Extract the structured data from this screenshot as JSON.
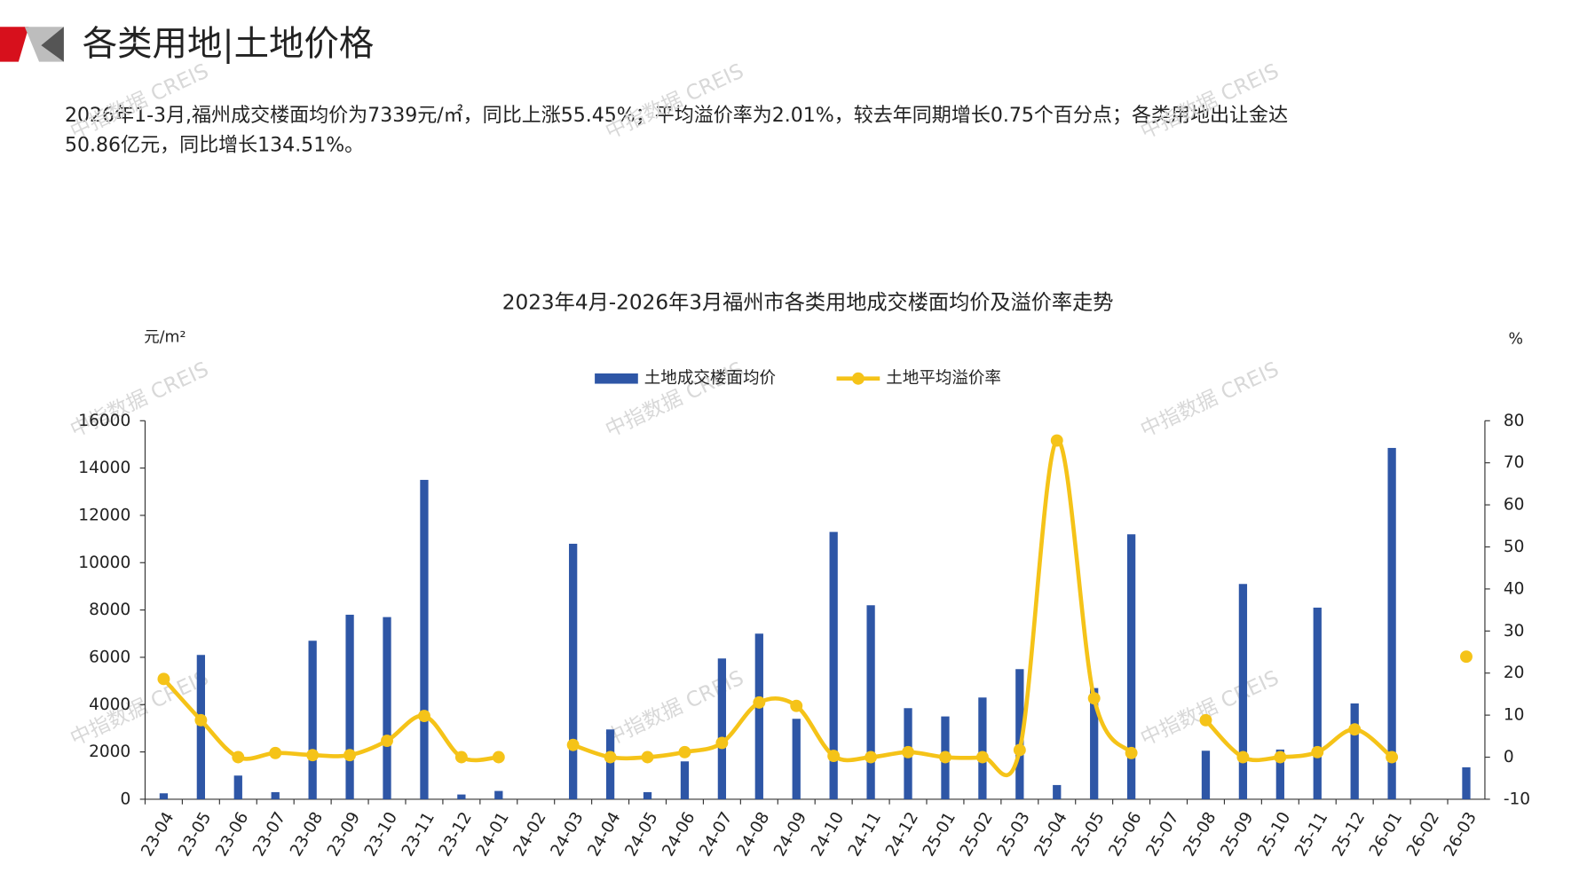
{
  "header": {
    "title": "各类用地|土地价格",
    "paragraph_lines": [
      "2026年1-3月,福州成交楼面均价为7339元/㎡，同比上涨55.45%；平均溢价率为2.01%，较去年同期增长0.75个百分点；各类用地出让金达",
      "50.86亿元，同比增长134.51%。"
    ]
  },
  "watermark": "中指数据 CREIS",
  "chart_data": {
    "type": "bar_line",
    "title": "2023年4月-2026年3月福州市各类用地成交楼面均价及溢价率走势",
    "y_unit": "元/m²",
    "y2_unit": "%",
    "categories": [
      "23-04",
      "23-05",
      "23-06",
      "23-07",
      "23-08",
      "23-09",
      "23-10",
      "23-11",
      "23-12",
      "24-01",
      "24-02",
      "24-03",
      "24-04",
      "24-05",
      "24-06",
      "24-07",
      "24-08",
      "24-09",
      "24-10",
      "24-11",
      "24-12",
      "25-01",
      "25-02",
      "25-03",
      "25-04",
      "25-05",
      "25-06",
      "25-07",
      "25-08",
      "25-09",
      "25-10",
      "25-11",
      "25-12",
      "26-01",
      "26-02",
      "26-03"
    ],
    "series": [
      {
        "name": "土地成交楼面均价",
        "color": "#2e56a6",
        "type": "bar",
        "values": [
          250,
          6100,
          1000,
          300,
          6700,
          7800,
          7700,
          13500,
          200,
          350,
          null,
          10800,
          2950,
          300,
          1600,
          5950,
          7000,
          3400,
          11300,
          8200,
          3850,
          3500,
          4300,
          5500,
          600,
          4700,
          11200,
          null,
          2050,
          9100,
          2100,
          8100,
          4050,
          14850,
          null,
          1350
        ]
      },
      {
        "name": "土地平均溢价率",
        "color": "#f5c318",
        "type": "line",
        "axis": "y2",
        "values": [
          18.6,
          8.8,
          0,
          1,
          0.5,
          0.5,
          3.9,
          9.8,
          0,
          0,
          null,
          2.9,
          0,
          0,
          1.2,
          3.4,
          13,
          12.2,
          0.3,
          0,
          1.2,
          0,
          0,
          1.7,
          75.3,
          14,
          1,
          null,
          8.8,
          0,
          0,
          1.2,
          6.6,
          0,
          null,
          23.9
        ]
      }
    ],
    "ylim": [
      0,
      16000
    ],
    "yticks": [
      0,
      2000,
      4000,
      6000,
      8000,
      10000,
      12000,
      14000,
      16000
    ],
    "y2lim": [
      -10,
      80
    ],
    "y2ticks": [
      -10,
      0,
      10,
      20,
      30,
      40,
      50,
      60,
      70,
      80
    ]
  }
}
